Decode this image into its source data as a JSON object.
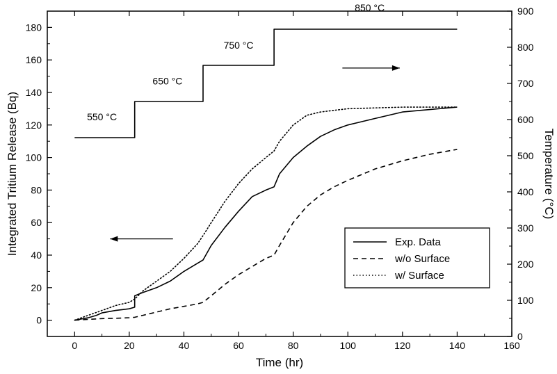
{
  "chart_data": {
    "type": "line",
    "title": "",
    "xlabel": "Time (hr)",
    "ylabel": "Integrated Tritium Release (Bq)",
    "y2label": "Temperature (°C)",
    "xlim": [
      -10,
      160
    ],
    "ylim": [
      -10,
      190
    ],
    "y2lim": [
      0,
      900
    ],
    "x_ticks": [
      0,
      20,
      40,
      60,
      80,
      100,
      120,
      140,
      160
    ],
    "y_ticks": [
      0,
      20,
      40,
      60,
      80,
      100,
      120,
      140,
      160,
      180
    ],
    "y2_ticks": [
      0,
      100,
      200,
      300,
      400,
      500,
      600,
      700,
      800,
      900
    ],
    "grid": false,
    "legend_position": "bottom-right",
    "series": [
      {
        "name": "Exp. Data",
        "style": "solid",
        "axis": "left",
        "x": [
          0,
          5,
          8,
          10,
          15,
          20,
          22,
          22,
          25,
          30,
          35,
          40,
          45,
          47,
          50,
          55,
          60,
          65,
          70,
          73,
          75,
          80,
          85,
          90,
          95,
          100,
          110,
          120,
          130,
          140
        ],
        "y": [
          0,
          1.5,
          3,
          4.5,
          6,
          7,
          8,
          15,
          17,
          20,
          24,
          30,
          35,
          37,
          46,
          57,
          67,
          76,
          80,
          82,
          90,
          100,
          107,
          113,
          117,
          120,
          124,
          128,
          129.5,
          131
        ]
      },
      {
        "name": "w/o Surface",
        "style": "dashed",
        "axis": "left",
        "x": [
          0,
          5,
          10,
          15,
          20,
          22,
          25,
          30,
          35,
          40,
          45,
          47,
          50,
          55,
          60,
          65,
          70,
          73,
          75,
          80,
          85,
          90,
          95,
          100,
          110,
          120,
          130,
          140
        ],
        "y": [
          0,
          0.5,
          1,
          1.2,
          1.5,
          1.8,
          3,
          5,
          7,
          8.5,
          10,
          11,
          15,
          22,
          28,
          33,
          38,
          40,
          46,
          60,
          70,
          77,
          82,
          86,
          93,
          98,
          102,
          105
        ]
      },
      {
        "name": "w/  Surface",
        "style": "dotted",
        "axis": "left",
        "x": [
          0,
          5,
          10,
          15,
          20,
          22,
          25,
          30,
          35,
          40,
          45,
          47,
          50,
          55,
          60,
          65,
          70,
          73,
          75,
          80,
          85,
          90,
          95,
          100,
          110,
          120,
          130,
          140
        ],
        "y": [
          0,
          3,
          6,
          9,
          11,
          13,
          18,
          24,
          30,
          38,
          47,
          52,
          60,
          73,
          84,
          93,
          100,
          104,
          110,
          120,
          126,
          128,
          129,
          130,
          130.5,
          131,
          131,
          131
        ]
      },
      {
        "name": "Temperature",
        "style": "solid",
        "axis": "right",
        "x": [
          0,
          22,
          22,
          47,
          47,
          73,
          73,
          140
        ],
        "y": [
          550,
          550,
          650,
          650,
          750,
          750,
          850,
          850
        ]
      }
    ],
    "annotations": [
      {
        "text": "550 °C",
        "x": 10,
        "y": 123
      },
      {
        "text": "650 °C",
        "x": 34,
        "y": 145
      },
      {
        "text": "750 °C",
        "x": 60,
        "y": 167
      },
      {
        "text": "850 °C",
        "x": 108,
        "y": 190
      }
    ],
    "arrows": [
      {
        "direction": "right",
        "x_from": 98,
        "x_to": 119,
        "y": 155
      },
      {
        "direction": "left",
        "x_from": 36,
        "x_to": 13,
        "y": 50
      }
    ]
  }
}
